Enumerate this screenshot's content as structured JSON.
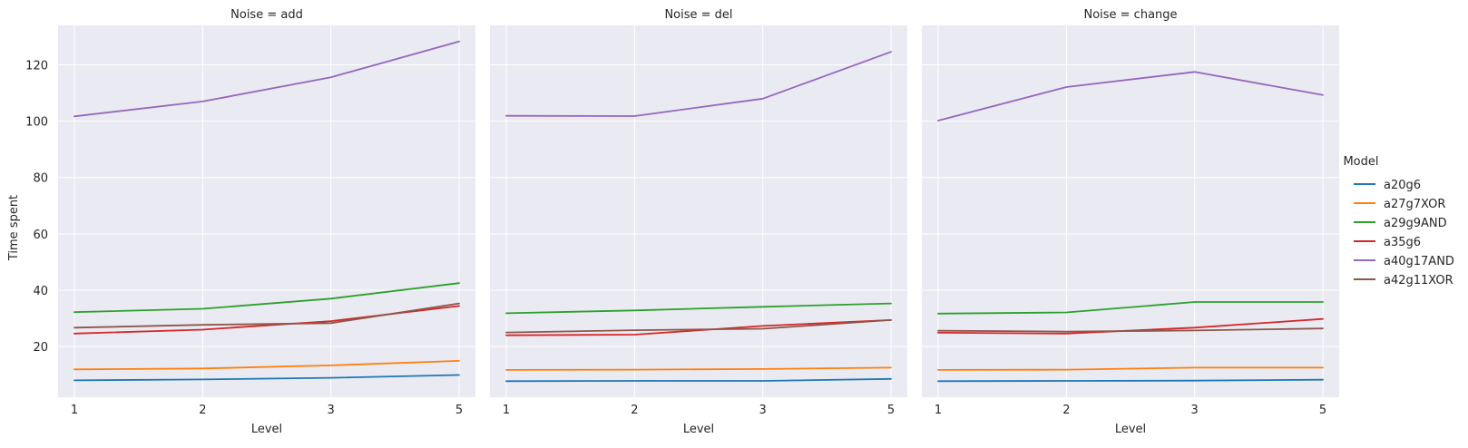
{
  "chart_data": {
    "type": "line",
    "facet_label": "Noise",
    "xlabel": "Level",
    "ylabel": "Time spent",
    "x_ticks": [
      "1",
      "2",
      "3",
      "5"
    ],
    "y_ticks": [
      20,
      40,
      60,
      80,
      100,
      120
    ],
    "ylim": [
      2,
      134
    ],
    "grid": true,
    "legend": {
      "title": "Model",
      "placement": "right"
    },
    "series_colors": {
      "a20g6": "#1f77b4",
      "a27g7XOR": "#ff7f0e",
      "a29g9AND": "#2ca02c",
      "a35g6": "#d62728",
      "a40g17AND": "#9467bd",
      "a42g11XOR": "#8c564b"
    },
    "panels": [
      {
        "title": "Noise = add",
        "series": [
          {
            "name": "a20g6",
            "values": [
              8.0,
              8.3,
              8.9,
              9.9
            ]
          },
          {
            "name": "a27g7XOR",
            "values": [
              11.9,
              12.2,
              13.3,
              14.9
            ]
          },
          {
            "name": "a29g9AND",
            "values": [
              32.2,
              33.4,
              37.0,
              42.5
            ]
          },
          {
            "name": "a35g6",
            "values": [
              24.6,
              26.0,
              29.0,
              34.4
            ]
          },
          {
            "name": "a40g17AND",
            "values": [
              101.7,
              107.0,
              115.6,
              128.3
            ]
          },
          {
            "name": "a42g11XOR",
            "values": [
              26.7,
              27.7,
              28.3,
              35.3
            ]
          }
        ]
      },
      {
        "title": "Noise = del",
        "series": [
          {
            "name": "a20g6",
            "values": [
              7.7,
              7.8,
              7.8,
              8.5
            ]
          },
          {
            "name": "a27g7XOR",
            "values": [
              11.7,
              11.8,
              12.0,
              12.5
            ]
          },
          {
            "name": "a29g9AND",
            "values": [
              31.8,
              32.8,
              34.1,
              35.3
            ]
          },
          {
            "name": "a35g6",
            "values": [
              24.0,
              24.2,
              27.3,
              29.4
            ]
          },
          {
            "name": "a40g17AND",
            "values": [
              101.9,
              101.8,
              108.0,
              124.6
            ]
          },
          {
            "name": "a42g11XOR",
            "values": [
              25.0,
              25.8,
              26.3,
              29.4
            ]
          }
        ]
      },
      {
        "title": "Noise = change",
        "series": [
          {
            "name": "a20g6",
            "values": [
              7.7,
              7.8,
              7.9,
              8.2
            ]
          },
          {
            "name": "a27g7XOR",
            "values": [
              11.7,
              11.8,
              12.5,
              12.5
            ]
          },
          {
            "name": "a29g9AND",
            "values": [
              31.7,
              32.1,
              35.8,
              35.8
            ]
          },
          {
            "name": "a35g6",
            "values": [
              24.9,
              24.6,
              26.7,
              29.8
            ]
          },
          {
            "name": "a40g17AND",
            "values": [
              100.2,
              112.1,
              117.5,
              109.3
            ]
          },
          {
            "name": "a42g11XOR",
            "values": [
              25.6,
              25.3,
              25.7,
              26.4
            ]
          }
        ]
      }
    ]
  }
}
